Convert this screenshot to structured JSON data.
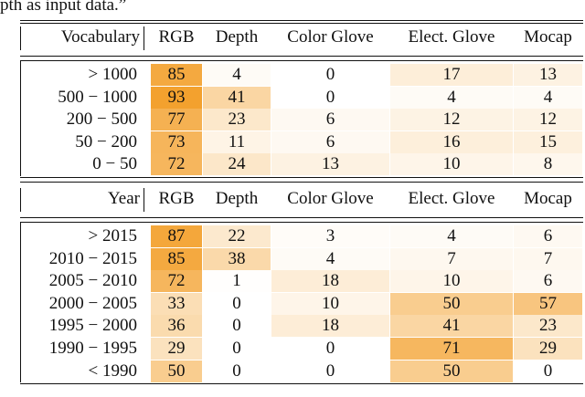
{
  "caption_fragment": "pth as input data.”",
  "tables": [
    {
      "header": [
        "Vocabulary",
        "RGB",
        "Depth",
        "Color Glove",
        "Elect. Glove",
        "Mocap"
      ],
      "rows": [
        {
          "label": "> 1000",
          "values": [
            85,
            4,
            0,
            17,
            13
          ]
        },
        {
          "label": "500 − 1000",
          "values": [
            93,
            41,
            0,
            4,
            4
          ]
        },
        {
          "label": "200 − 500",
          "values": [
            77,
            23,
            6,
            12,
            12
          ]
        },
        {
          "label": "50 − 200",
          "values": [
            73,
            11,
            6,
            16,
            15
          ]
        },
        {
          "label": "0 − 50",
          "values": [
            72,
            24,
            13,
            10,
            8
          ]
        }
      ]
    },
    {
      "header": [
        "Year",
        "RGB",
        "Depth",
        "Color Glove",
        "Elect. Glove",
        "Mocap"
      ],
      "rows": [
        {
          "label": "> 2015",
          "values": [
            87,
            22,
            3,
            4,
            6
          ]
        },
        {
          "label": "2010 − 2015",
          "values": [
            85,
            38,
            4,
            7,
            7
          ]
        },
        {
          "label": "2005 − 2010",
          "values": [
            72,
            1,
            18,
            10,
            6
          ]
        },
        {
          "label": "2000 − 2005",
          "values": [
            33,
            0,
            10,
            50,
            57
          ]
        },
        {
          "label": "1995 − 2000",
          "values": [
            36,
            0,
            18,
            41,
            23
          ]
        },
        {
          "label": "1990 − 1995",
          "values": [
            29,
            0,
            0,
            71,
            29
          ]
        },
        {
          "label": "< 1990",
          "values": [
            50,
            0,
            0,
            50,
            0
          ]
        }
      ]
    }
  ]
}
